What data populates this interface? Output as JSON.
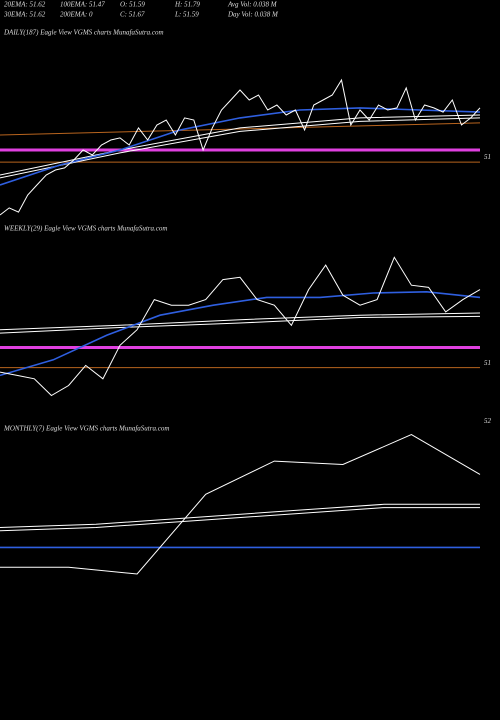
{
  "header": {
    "rows": [
      [
        "20EMA: 51.62",
        "100EMA: 51.47",
        "O: 51.59",
        "H: 51.79",
        "Avg Vol: 0.038 M"
      ],
      [
        "30EMA: 51.62",
        "200EMA: 0",
        "C: 51.67",
        "L: 51.59",
        "Day Vol: 0.038 M"
      ]
    ]
  },
  "chart_data": [
    {
      "type": "line",
      "title": "DAILY(187) Eagle View VGMS charts MunafaSutra.com",
      "ylim": [
        50.05,
        52.64
      ],
      "yticks": [
        51
      ],
      "hlines": [
        {
          "value": 51.1,
          "color": "#e040e0"
        },
        {
          "value": 50.93,
          "color": "#b8641e"
        }
      ],
      "series": [
        {
          "color": "#b8641e",
          "values": [
            51.31,
            51.48
          ]
        },
        {
          "color": "#ffffff",
          "values": [
            50.75,
            51.1,
            51.41,
            51.55,
            51.59
          ]
        },
        {
          "color": "#ffffff",
          "values": [
            50.71,
            51.06,
            51.36,
            51.5,
            51.55
          ]
        },
        {
          "color": "#2f5fe0",
          "values": [
            50.61,
            50.89,
            51.1,
            51.38,
            51.55,
            51.66,
            51.69,
            51.66,
            51.63
          ]
        },
        {
          "color": "#ffffff",
          "values": [
            50.19,
            50.29,
            50.23,
            50.47,
            50.61,
            50.75,
            50.82,
            50.85,
            50.96,
            51.1,
            51.03,
            51.17,
            51.24,
            51.27,
            51.17,
            51.41,
            51.24,
            51.45,
            51.52,
            51.31,
            51.55,
            51.52,
            51.1,
            51.41,
            51.66,
            51.8,
            51.94,
            51.8,
            51.87,
            51.66,
            51.73,
            51.59,
            51.66,
            51.38,
            51.73,
            51.8,
            51.87,
            52.08,
            51.45,
            51.66,
            51.52,
            51.73,
            51.66,
            51.69,
            51.97,
            51.52,
            51.73,
            51.69,
            51.63,
            51.8,
            51.45,
            51.55,
            51.69
          ]
        }
      ]
    },
    {
      "type": "line",
      "title": "WEEKLY(29) Eagle View VGMS charts MunafaSutra.com",
      "ylim": [
        50.49,
        52.15
      ],
      "yticks": [
        51
      ],
      "hlines": [
        {
          "value": 51.14,
          "color": "#e040e0"
        },
        {
          "value": 50.96,
          "color": "#b8641e"
        }
      ],
      "series": [
        {
          "color": "#ffffff",
          "values": [
            51.3,
            51.34,
            51.39,
            51.43,
            51.45
          ]
        },
        {
          "color": "#ffffff",
          "values": [
            51.27,
            51.32,
            51.36,
            51.41,
            51.42
          ]
        },
        {
          "color": "#2f5fe0",
          "values": [
            50.89,
            51.03,
            51.25,
            51.43,
            51.52,
            51.59,
            51.59,
            51.63,
            51.64,
            51.59
          ]
        },
        {
          "color": "#ffffff",
          "values": [
            50.92,
            50.89,
            50.86,
            50.71,
            50.8,
            50.98,
            50.86,
            51.16,
            51.3,
            51.57,
            51.52,
            51.52,
            51.57,
            51.75,
            51.77,
            51.57,
            51.52,
            51.34,
            51.66,
            51.88,
            51.61,
            51.52,
            51.57,
            51.95,
            51.7,
            51.68,
            51.46,
            51.57,
            51.66
          ]
        }
      ]
    },
    {
      "type": "line",
      "title": "MONTHLY(7) Eagle View VGMS charts MunafaSutra.com",
      "ylim": [
        51.1,
        52.01
      ],
      "yticks": [
        52
      ],
      "hlines": [],
      "series": [
        {
          "color": "#ffffff",
          "values": [
            51.68,
            51.69,
            51.71,
            51.73,
            51.75,
            51.75
          ]
        },
        {
          "color": "#ffffff",
          "values": [
            51.67,
            51.68,
            51.7,
            51.72,
            51.74,
            51.74
          ]
        },
        {
          "color": "#2f5fe0",
          "values": [
            51.62,
            51.62
          ]
        },
        {
          "color": "#ffffff",
          "values": [
            51.56,
            51.56,
            51.54,
            51.78,
            51.88,
            51.87,
            51.96,
            51.84
          ]
        }
      ]
    }
  ]
}
